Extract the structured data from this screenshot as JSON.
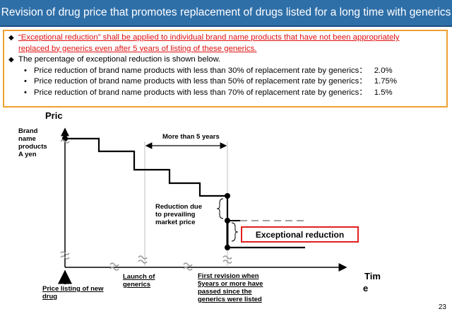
{
  "slide": {
    "title": "Revision of drug price that promotes replacement of drugs listed for a long time with generics",
    "page_number": "23"
  },
  "info": {
    "bullet1_line1": "“Exceptional reduction” shall be applied to individual brand name products that have not been appropriately",
    "bullet1_line2": "replaced by generics even after 5 years of listing of these generics.",
    "bullet2": "The percentage of exceptional reduction is shown below.",
    "items": [
      {
        "text": "Price reduction of brand name products with less than 30% of replacement rate by generics：",
        "value": "2.0%"
      },
      {
        "text": "Price reduction of brand name products with less than 50% of replacement rate by generics：",
        "value": "1.75%"
      },
      {
        "text": "Price reduction of brand name products with less than 70% of replacement rate by generics：",
        "value": "1.5%"
      }
    ]
  },
  "diagram": {
    "y_axis_label": "Pric",
    "x_axis_label_1": "Tim",
    "x_axis_label_2": "e",
    "brand_label": [
      "Brand",
      "name",
      "products",
      "A yen"
    ],
    "more_than_label": "More than 5 years",
    "reduction_label": [
      "Reduction due",
      "to prevailing",
      "market  price"
    ],
    "exceptional_label": "Exceptional reduction",
    "price_listing_label": [
      "Price listing of new",
      "drug"
    ],
    "launch_label": [
      "Launch of",
      "generics"
    ],
    "first_revision_label": [
      "First revision when",
      "5years or more have",
      "passed since the",
      "generics were listed"
    ]
  }
}
